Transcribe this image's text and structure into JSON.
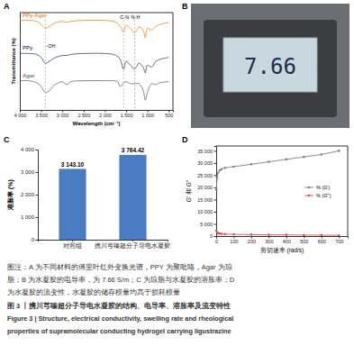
{
  "chart_data": [
    {
      "panel": "A",
      "type": "line",
      "x_label": "Wavelength (cm⁻¹)",
      "y_label": "Transmittance (%)",
      "x": [
        4000,
        3800,
        3600,
        3500,
        3400,
        3300,
        3200,
        3000,
        2900,
        2800,
        2500,
        2000,
        1800,
        1700,
        1640,
        1560,
        1500,
        1400,
        1300,
        1200,
        1100,
        1050,
        1000,
        900,
        800,
        700,
        500
      ],
      "series": [
        {
          "name": "PPy-Agar",
          "color": "#e8943a",
          "values": [
            92,
            92,
            91,
            88,
            84,
            86,
            89,
            91,
            90,
            91,
            92,
            92,
            91,
            89,
            86,
            80,
            87,
            84,
            79,
            85,
            82,
            74,
            84,
            82,
            86,
            88,
            90
          ]
        },
        {
          "name": "PPy",
          "color": "#4d5a85",
          "values": [
            58,
            58,
            57,
            54,
            48,
            50,
            53,
            56,
            56,
            57,
            58,
            58,
            57,
            55,
            52,
            42,
            50,
            46,
            42,
            48,
            44,
            38,
            46,
            44,
            50,
            52,
            54
          ]
        },
        {
          "name": "Agar",
          "color": "#7a7a7a",
          "values": [
            30,
            30,
            28,
            24,
            18,
            20,
            25,
            29,
            26,
            29,
            30,
            30,
            30,
            29,
            24,
            28,
            29,
            27,
            27,
            27,
            20,
            10,
            18,
            27,
            26,
            28,
            29
          ]
        }
      ],
      "xlim": [
        4000,
        400
      ],
      "xticks": [
        {
          "value": 4000,
          "label": "4 000"
        },
        {
          "value": 3500,
          "label": "3 500"
        },
        {
          "value": 3000,
          "label": "3 000"
        },
        {
          "value": 2500,
          "label": "2 500"
        },
        {
          "value": 2000,
          "label": "2 000"
        },
        {
          "value": 1500,
          "label": "1 500"
        },
        {
          "value": 1000,
          "label": "1 000"
        },
        500
      ],
      "ylim": [
        0,
        100
      ],
      "tick_labels": "x",
      "annotations": [
        {
          "text": "-OH",
          "x": 3400
        },
        {
          "text": "C-N",
          "x": 1560
        },
        {
          "text": "N-H",
          "x": 1300
        }
      ]
    },
    {
      "panel": "B",
      "type": "image",
      "display_text": "7.66"
    },
    {
      "panel": "C",
      "type": "bar",
      "y_label": "溶胀率 (%)",
      "categories": [
        "对照组",
        "携川芎嗪超分子导电水凝胶"
      ],
      "values": [
        3143.1,
        3764.42
      ],
      "value_labels": [
        "3 143.10",
        "3 764.42"
      ],
      "color": "#4a7cc4",
      "ylim": [
        0,
        4000
      ],
      "yticks": [
        0,
        {
          "value": 1000,
          "label": "1 000"
        },
        {
          "value": 2000,
          "label": "2 000"
        },
        {
          "value": 3000,
          "label": "3 000"
        },
        {
          "value": 4000,
          "label": "4 000"
        }
      ],
      "data_labels": true
    },
    {
      "panel": "D",
      "type": "line",
      "x_label": "剪切速率 (rad/s)",
      "y_label": "G' 和 G''",
      "x": [
        1,
        5,
        10,
        20,
        30,
        50,
        100,
        200,
        300,
        400,
        500,
        600,
        700
      ],
      "series": [
        {
          "name": "% (G')",
          "color": "#808080",
          "marker": "circle",
          "values": [
            19000,
            24000,
            26000,
            27000,
            27500,
            28000,
            28500,
            29500,
            30500,
            31500,
            32500,
            33500,
            35000
          ]
        },
        {
          "name": "% (G'')",
          "color": "#d9534f",
          "marker": "circle",
          "values": [
            2200,
            1500,
            1200,
            1000,
            900,
            800,
            700,
            600,
            500,
            500,
            400,
            400,
            300
          ]
        }
      ],
      "xlim": [
        0,
        750
      ],
      "xticks": [
        0,
        100,
        200,
        300,
        400,
        500,
        600,
        700
      ],
      "ylim": [
        0,
        37000
      ],
      "yticks": [
        0,
        {
          "value": 5000,
          "label": "5 000"
        },
        {
          "value": 10000,
          "label": "10 000"
        },
        {
          "value": 15000,
          "label": "15 000"
        },
        {
          "value": 20000,
          "label": "20 000"
        },
        {
          "value": 25000,
          "label": "25 000"
        },
        {
          "value": 30000,
          "label": "30 000"
        },
        {
          "value": 35000,
          "label": "35 000"
        }
      ],
      "legend": "right"
    }
  ],
  "caption": {
    "note": [
      "图注：A 为不同材料的傅里叶红外变换光谱，PPY 为聚吡咯，Agar 为琼",
      "脂；B 为水凝胶的电导率，为 7.66 S/m；C 为琼脂与水凝胶的溶胀率；D",
      "为水凝胶的流变性，水凝胶的储存模量均高于损耗模量"
    ],
    "title_cn": "图 3 丨携川芎嗪超分子导电水凝胶的结构、电导率、溶胀率及流变特性",
    "title_en": [
      "Figure 3 | Structure, electrical conductivity, swelling rate and rheological",
      "properties of supramolecular conducting hydrogel carrying ligustrazine"
    ]
  }
}
